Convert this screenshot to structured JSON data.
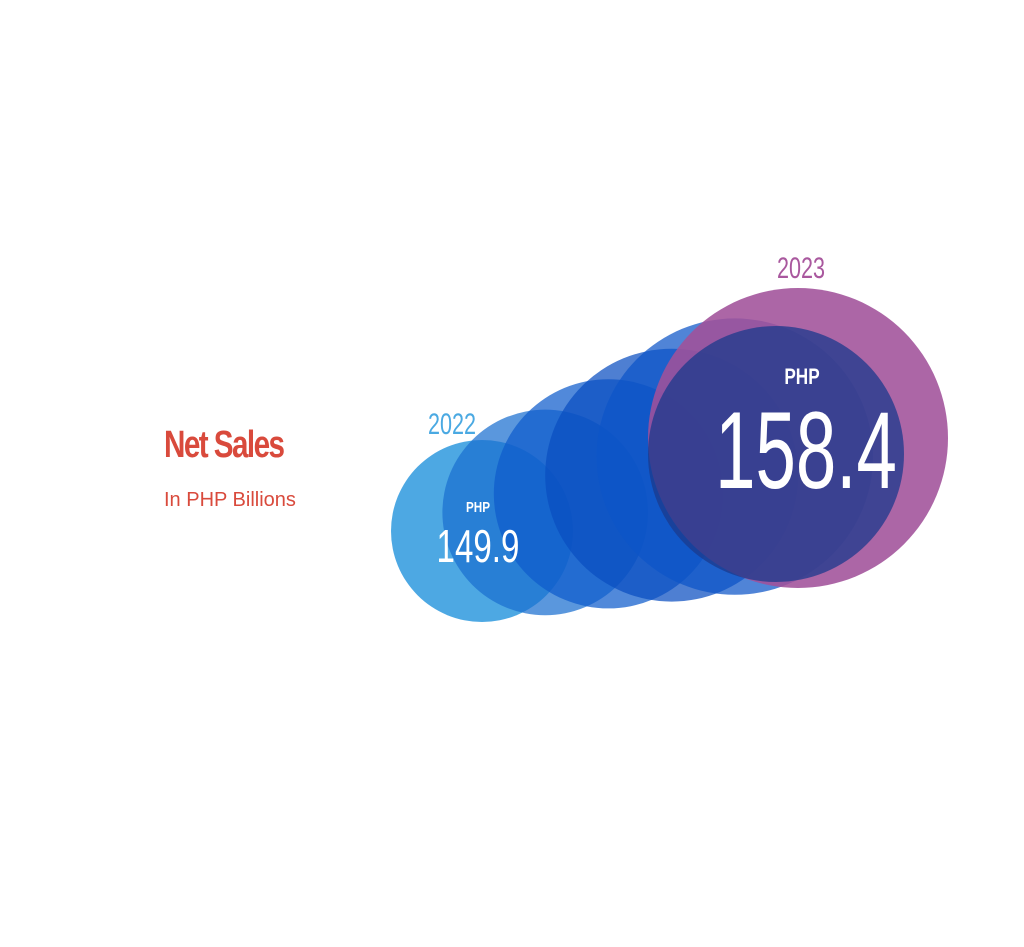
{
  "heading": {
    "title": "Net Sales",
    "subtitle": "In PHP Billions",
    "color": "#d94a3c"
  },
  "chart_data": {
    "type": "bubble",
    "unit_prefix": "PHP",
    "points": [
      {
        "year": "2022",
        "value": 149.9,
        "currency": "PHP",
        "value_label": "149.9",
        "year_color": "#4aa9e2",
        "color": "#3a9fe0"
      },
      {
        "year": "2023",
        "value": 158.4,
        "currency": "PHP",
        "value_label": "158.4",
        "year_color": "#a9589e",
        "color": "#a0519a"
      }
    ],
    "intermediate_colors": [
      "#1a6fd0",
      "#0e5ccc",
      "#0a4ec0",
      "#0c55c8"
    ],
    "overlap_color": "#1b3a8c"
  }
}
